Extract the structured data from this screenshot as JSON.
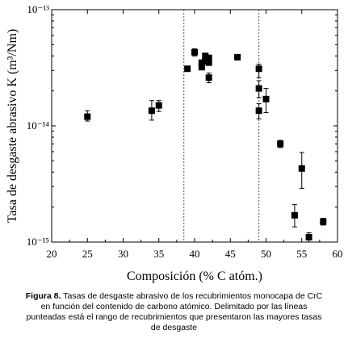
{
  "chart_data": {
    "type": "scatter",
    "xlabel": "Composición (% C atóm.)",
    "ylabel": "Tasa de desgaste abrasivo K (m³/Nm)",
    "xlim": [
      20,
      60
    ],
    "ylim": [
      1e-15,
      1e-13
    ],
    "yscale": "log",
    "x_ticks": [
      20,
      25,
      30,
      35,
      40,
      45,
      50,
      55,
      60
    ],
    "y_tick_labels": [
      "10⁻¹³",
      "10⁻¹⁴",
      "10⁻¹⁵"
    ],
    "y_tick_values": [
      1e-13,
      1e-14,
      1e-15
    ],
    "vlines": [
      38.5,
      49.0
    ],
    "marker": "square",
    "grid": false,
    "points": [
      {
        "x": 25.0,
        "y": 1.2e-14,
        "err_low": 1.1e-14,
        "err_high": 1.35e-14
      },
      {
        "x": 34.0,
        "y": 1.35e-14,
        "err_low": 1.12e-14,
        "err_high": 1.65e-14
      },
      {
        "x": 35.0,
        "y": 1.5e-14,
        "err_low": 1.33e-14,
        "err_high": 1.65e-14
      },
      {
        "x": 39.0,
        "y": 3.1e-14
      },
      {
        "x": 40.0,
        "y": 4.3e-14,
        "err_low": 4e-14,
        "err_high": 4.6e-14
      },
      {
        "x": 41.0,
        "y": 3.5e-14
      },
      {
        "x": 41.0,
        "y": 3.2e-14
      },
      {
        "x": 41.5,
        "y": 4e-14
      },
      {
        "x": 41.5,
        "y": 3.6e-14
      },
      {
        "x": 42.0,
        "y": 3.85e-14
      },
      {
        "x": 42.0,
        "y": 3.5e-14
      },
      {
        "x": 42.0,
        "y": 2.6e-14,
        "err_low": 2.35e-14,
        "err_high": 2.85e-14
      },
      {
        "x": 46.0,
        "y": 3.9e-14
      },
      {
        "x": 49.0,
        "y": 3.1e-14,
        "err_low": 2.6e-14,
        "err_high": 3.4e-14
      },
      {
        "x": 49.0,
        "y": 2.1e-14,
        "err_low": 1.75e-14,
        "err_high": 2.45e-14
      },
      {
        "x": 49.0,
        "y": 1.35e-14,
        "err_low": 1.15e-14,
        "err_high": 1.55e-14
      },
      {
        "x": 50.0,
        "y": 1.7e-14,
        "err_low": 1.3e-14,
        "err_high": 2.1e-14
      },
      {
        "x": 52.0,
        "y": 7e-15,
        "err_low": 6.5e-15,
        "err_high": 7.5e-15
      },
      {
        "x": 54.0,
        "y": 1.7e-15,
        "err_low": 1.35e-15,
        "err_high": 2.1e-15
      },
      {
        "x": 55.0,
        "y": 4.3e-15,
        "err_low": 2.9e-15,
        "err_high": 5.9e-15
      },
      {
        "x": 56.0,
        "y": 1.1e-15,
        "err_low": 1e-15,
        "err_high": 1.2e-15
      },
      {
        "x": 58.0,
        "y": 1.5e-15,
        "err_low": 1.4e-15,
        "err_high": 1.6e-15
      }
    ]
  },
  "caption": {
    "figure_label": "Figura 8.",
    "text": "Tasas de desgaste abrasivo de los recubrimientos monocapa de CrC en función del contenido de carbono atómico. Delimitado por las líneas punteadas está el rango de recubrimientos que presentaron las mayores tasas de desgaste"
  }
}
